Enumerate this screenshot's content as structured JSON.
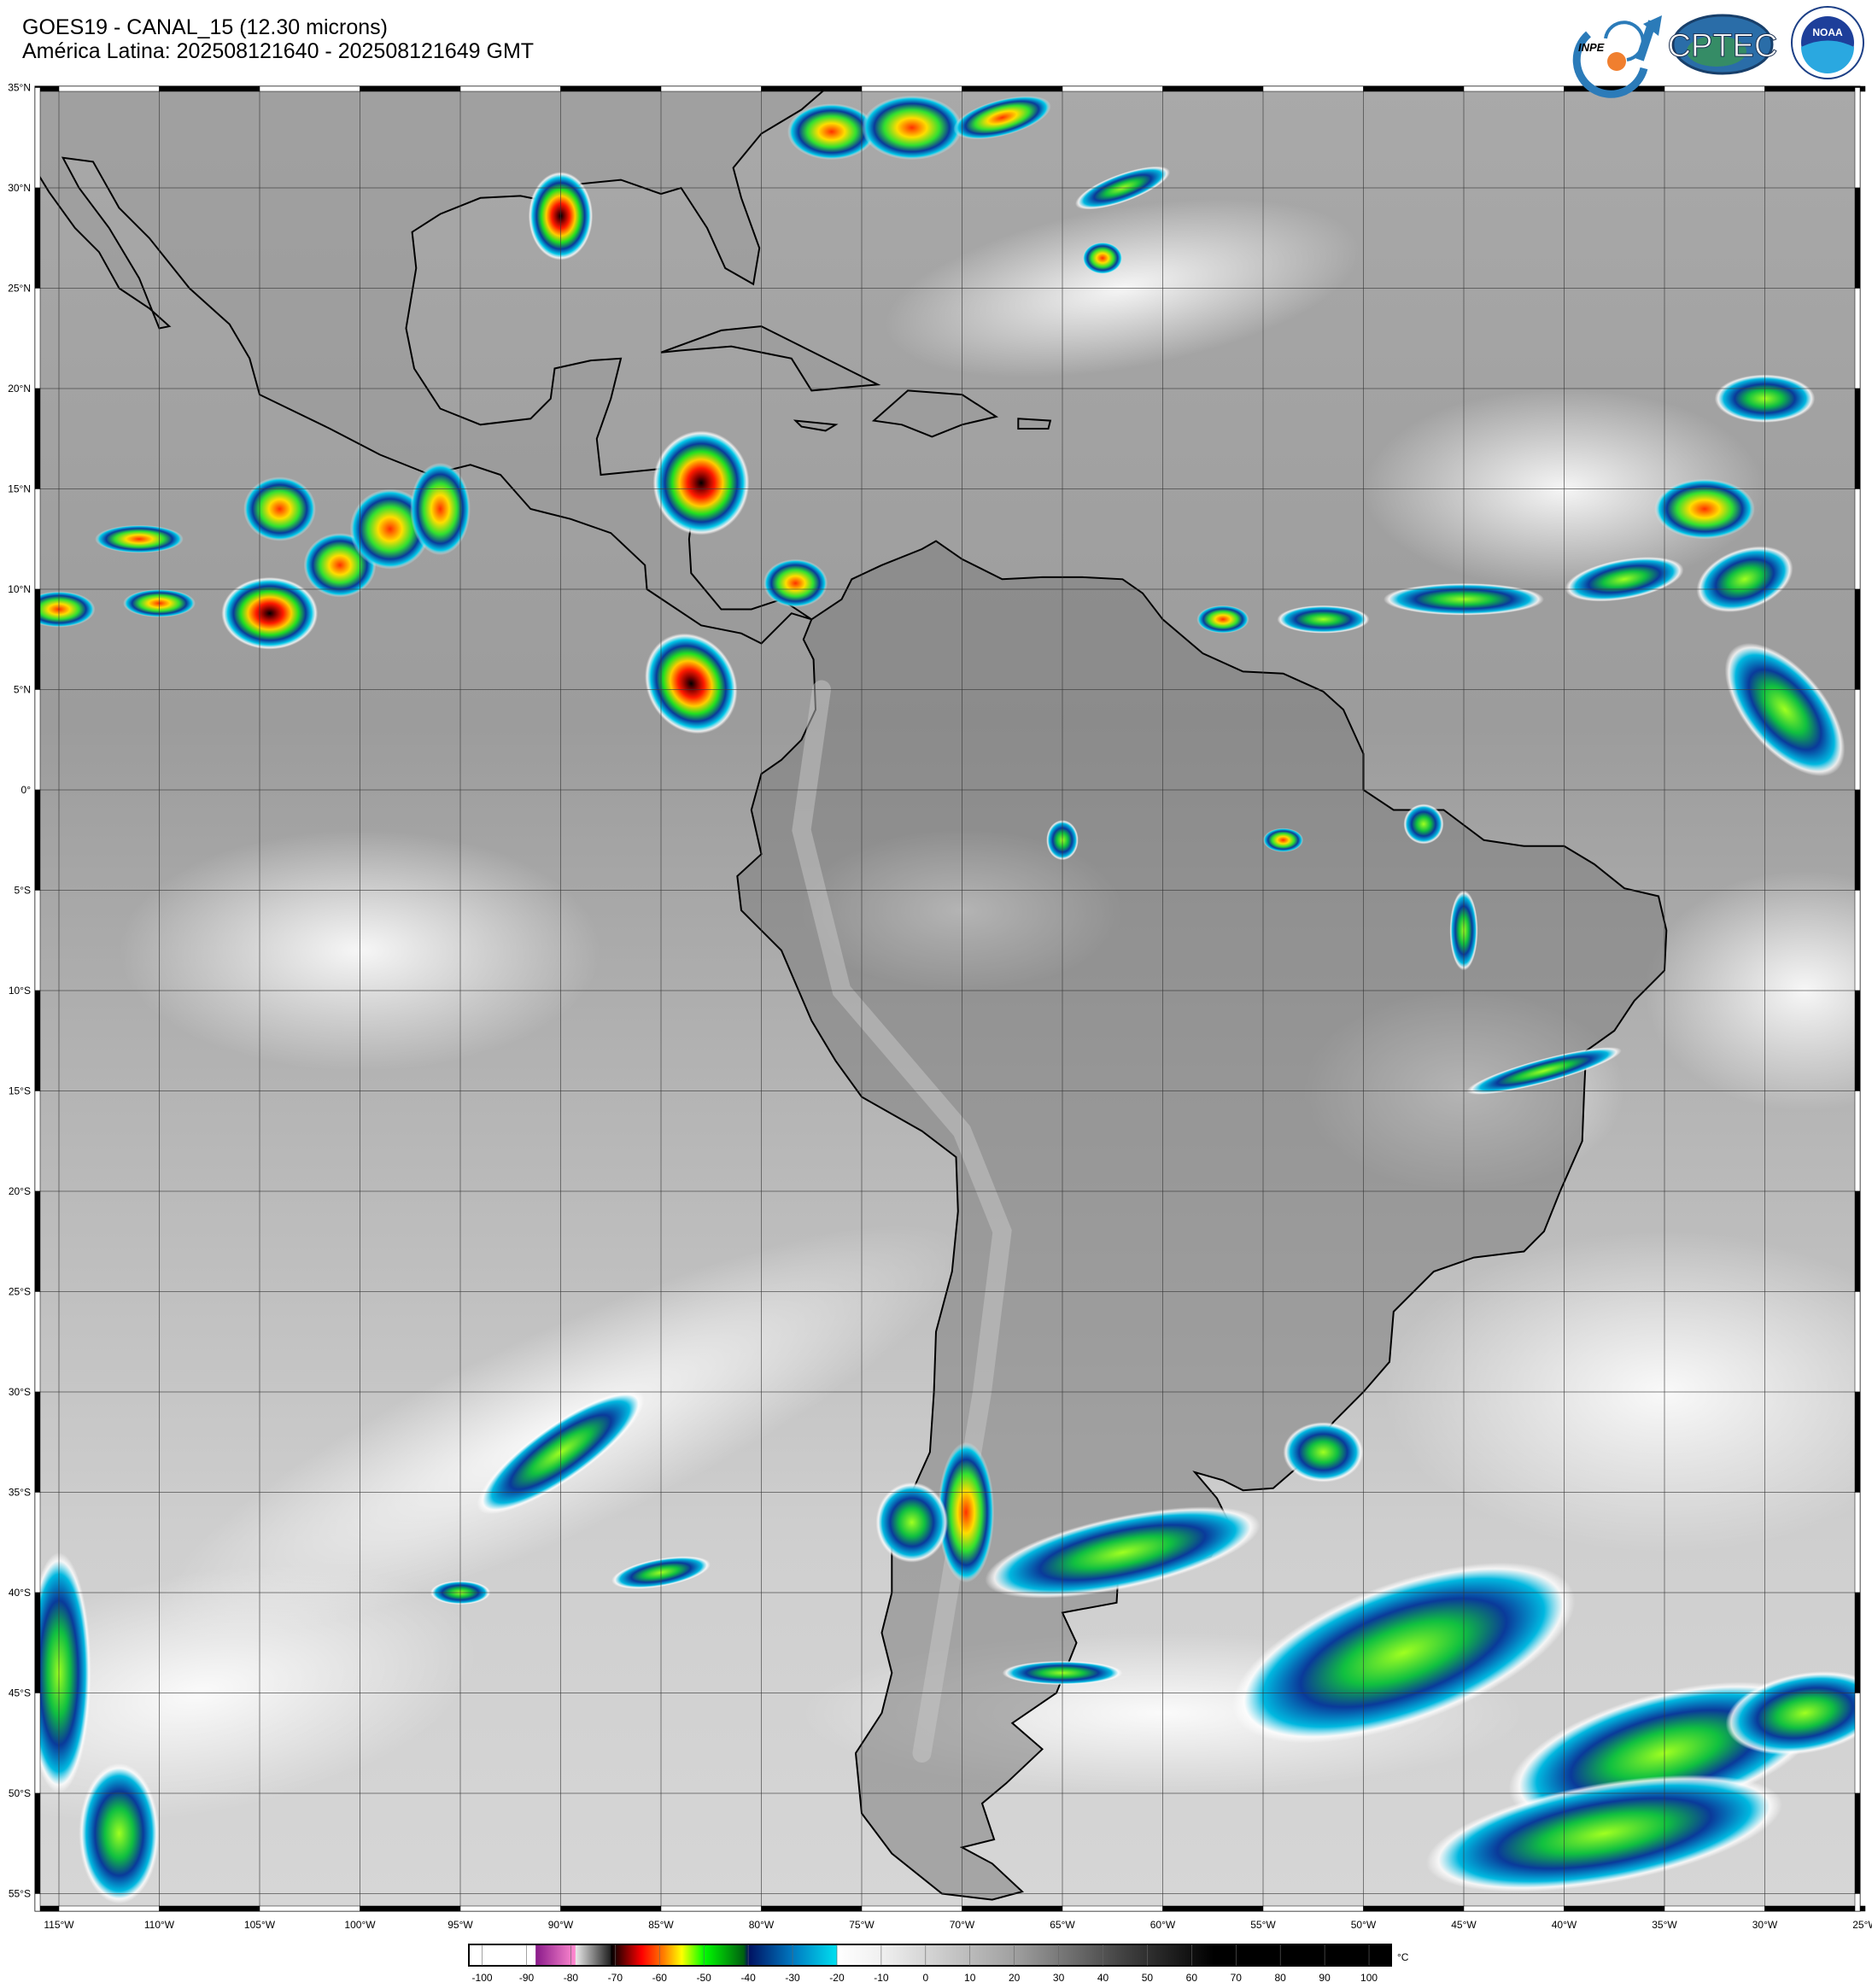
{
  "header": {
    "title_line1": "GOES19 - CANAL_15 (12.30 microns)",
    "title_line2": "América Latina: 202508121640 - 202508121649 GMT"
  },
  "logos": {
    "inpe": "INPE",
    "cptec": "CPTEC",
    "noaa": "NOAA",
    "noaa_ring": "NATIONAL OCEANIC AND ATMOSPHERIC ADMINISTRATION · U.S. DEPARTMENT OF COMMERCE"
  },
  "map": {
    "lat_labels": [
      "35°N",
      "30°N",
      "25°N",
      "20°N",
      "15°N",
      "10°N",
      "5°N",
      "0°",
      "5°S",
      "10°S",
      "15°S",
      "20°S",
      "25°S",
      "30°S",
      "35°S",
      "40°S",
      "45°S",
      "50°S",
      "55°S"
    ],
    "lon_labels": [
      "115°W",
      "110°W",
      "105°W",
      "100°W",
      "95°W",
      "90°W",
      "85°W",
      "80°W",
      "75°W",
      "70°W",
      "65°W",
      "60°W",
      "55°W",
      "50°W",
      "45°W",
      "40°W",
      "35°W",
      "30°W",
      "25°W"
    ]
  },
  "colorbar": {
    "unit": "°C",
    "ticks": [
      "-100",
      "-90",
      "-80",
      "-70",
      "-60",
      "-50",
      "-40",
      "-30",
      "-20",
      "-10",
      "0",
      "10",
      "20",
      "30",
      "40",
      "50",
      "60",
      "70",
      "80",
      "90",
      "100"
    ],
    "stops": [
      {
        "t": -103,
        "color": "#ffffff"
      },
      {
        "t": -88,
        "color": "#ffffff"
      },
      {
        "t": -87.9,
        "color": "#8a1a8a"
      },
      {
        "t": -79,
        "color": "#ff8ad0"
      },
      {
        "t": -78.9,
        "color": "#e8e8e8"
      },
      {
        "t": -71,
        "color": "#202020"
      },
      {
        "t": -70.9,
        "color": "#000000"
      },
      {
        "t": -64,
        "color": "#ff0000"
      },
      {
        "t": -59,
        "color": "#ff8000"
      },
      {
        "t": -55,
        "color": "#ffff00"
      },
      {
        "t": -50,
        "color": "#00ff00"
      },
      {
        "t": -41,
        "color": "#006010"
      },
      {
        "t": -40,
        "color": "#001060"
      },
      {
        "t": -30,
        "color": "#0078c0"
      },
      {
        "t": -20,
        "color": "#00e0f0"
      },
      {
        "t": -19.9,
        "color": "#ffffff"
      },
      {
        "t": -10,
        "color": "#f0f0f0"
      },
      {
        "t": 20,
        "color": "#a0a0a0"
      },
      {
        "t": 45,
        "color": "#404040"
      },
      {
        "t": 65,
        "color": "#000000"
      },
      {
        "t": 105,
        "color": "#000000"
      }
    ]
  }
}
